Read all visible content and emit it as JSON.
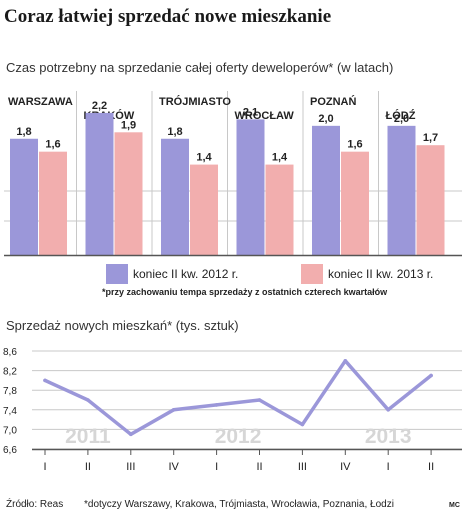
{
  "title": "Coraz łatwiej sprzedać nowe mieszkanie",
  "footer": {
    "source": "Źródło: Reas",
    "note": "*dotyczy Warszawy, Krakowa, Trójmiasta, Wrocławia, Poznania, Łodzi",
    "mark": "MC"
  },
  "colors": {
    "series1": "#9b97d9",
    "series2": "#f2aeae",
    "line": "#9b97d9",
    "grid": "#c8c8c8",
    "year_label": "#d6d6d6"
  },
  "chart_data": [
    {
      "type": "bar",
      "title": "Czas potrzebny na sprzedanie całej oferty deweloperów* (w latach)",
      "categories": [
        "WARSZAWA",
        "KRAKÓW",
        "TRÓJMIASTO",
        "WROCŁAW",
        "POZNAŃ",
        "ŁÓDŹ"
      ],
      "series": [
        {
          "name": "koniec II kw. 2012 r.",
          "values": [
            1.8,
            2.2,
            1.8,
            2.1,
            2.0,
            2.0
          ],
          "labels": [
            "1,8",
            "2,2",
            "1,8",
            "2,1",
            "2,0",
            "2,0"
          ]
        },
        {
          "name": "koniec II kw. 2013 r.",
          "values": [
            1.6,
            1.9,
            1.4,
            1.4,
            1.6,
            1.7
          ],
          "labels": [
            "1,6",
            "1,9",
            "1,4",
            "1,4",
            "1,6",
            "1,7"
          ]
        }
      ],
      "ylim": [
        0,
        2.4
      ],
      "legend": "bottom",
      "footnote": "*przy zachowaniu tempa sprzedaży z ostatnich czterech kwartałów"
    },
    {
      "type": "line",
      "title": "Sprzedaż nowych mieszkań* (tys. sztuk)",
      "x": [
        "I",
        "II",
        "III",
        "IV",
        "I",
        "II",
        "III",
        "IV",
        "I",
        "II"
      ],
      "series": [
        {
          "values": [
            8.0,
            7.6,
            6.9,
            7.4,
            7.5,
            7.6,
            7.1,
            8.4,
            7.4,
            8.1
          ]
        }
      ],
      "years": [
        {
          "label": "2011",
          "from": 0,
          "to": 2
        },
        {
          "label": "2012",
          "from": 3,
          "to": 6
        },
        {
          "label": "2013",
          "from": 7,
          "to": 9
        }
      ],
      "yticks": [
        6.6,
        7.0,
        7.4,
        7.8,
        8.2,
        8.6
      ],
      "ytick_labels": [
        "6,6",
        "7,0",
        "7,4",
        "7,8",
        "8,2",
        "8,6"
      ],
      "ylim": [
        6.6,
        8.6
      ],
      "grid": true
    }
  ]
}
